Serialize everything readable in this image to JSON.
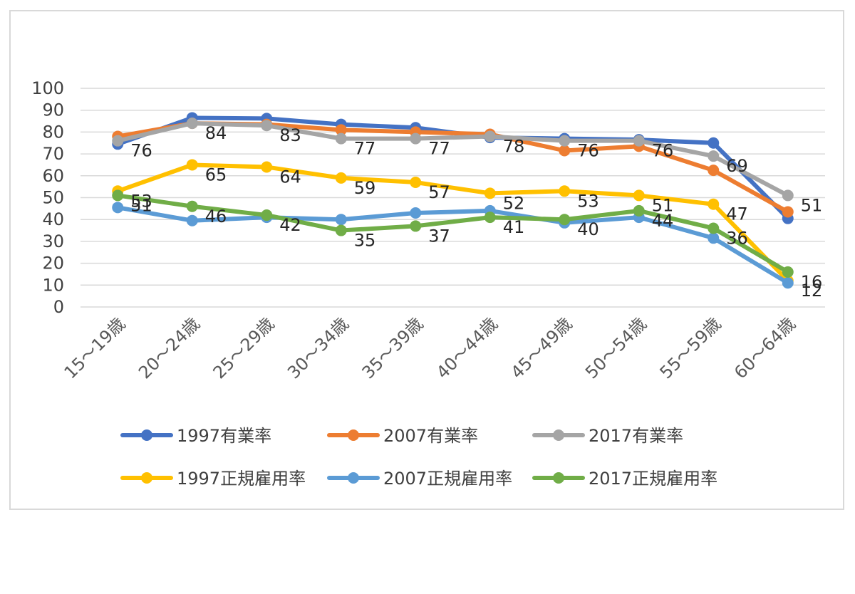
{
  "chart_data": {
    "type": "line",
    "categories": [
      "15～19歳",
      "20～24歳",
      "25～29歳",
      "30～34歳",
      "35～39歳",
      "40～44歳",
      "45～49歳",
      "50～54歳",
      "55～59歳",
      "60～64歳"
    ],
    "ylim": [
      0,
      100
    ],
    "yticks": [
      0,
      10,
      20,
      30,
      40,
      50,
      60,
      70,
      80,
      90,
      100
    ],
    "grid": true,
    "legend_position": "bottom",
    "series": [
      {
        "name": "1997有業率",
        "color": "#4472c4",
        "values": [
          74.5,
          86.5,
          86.2,
          83.5,
          82,
          77.5,
          77,
          76.5,
          75,
          40.5
        ]
      },
      {
        "name": "2007有業率",
        "color": "#ed7d31",
        "values": [
          78,
          84,
          83.5,
          81,
          80,
          79,
          71.5,
          73.5,
          62.5,
          43.5
        ]
      },
      {
        "name": "2017有業率",
        "color": "#a5a5a5",
        "values": [
          76,
          84,
          83,
          77,
          77,
          78,
          76,
          76,
          69,
          51
        ]
      },
      {
        "name": "1997正規雇用率",
        "color": "#ffc000",
        "values": [
          53,
          65,
          64,
          59,
          57,
          52,
          53,
          51,
          47,
          12
        ]
      },
      {
        "name": "2007正規雇用率",
        "color": "#5b9bd5",
        "values": [
          45.5,
          39.5,
          41,
          40,
          43,
          44,
          38.5,
          41,
          31.5,
          11
        ]
      },
      {
        "name": "2017正規雇用率",
        "color": "#70ad47",
        "values": [
          51,
          46,
          42,
          35,
          37,
          41,
          40,
          44,
          36,
          16
        ]
      }
    ],
    "data_labels": [
      {
        "series": 2,
        "point": 0,
        "text": "76"
      },
      {
        "series": 2,
        "point": 1,
        "text": "84"
      },
      {
        "series": 2,
        "point": 2,
        "text": "83"
      },
      {
        "series": 2,
        "point": 3,
        "text": "77"
      },
      {
        "series": 2,
        "point": 4,
        "text": "77"
      },
      {
        "series": 2,
        "point": 5,
        "text": "78"
      },
      {
        "series": 2,
        "point": 6,
        "text": "76"
      },
      {
        "series": 2,
        "point": 7,
        "text": "76"
      },
      {
        "series": 2,
        "point": 8,
        "text": "69"
      },
      {
        "series": 2,
        "point": 9,
        "text": "51"
      },
      {
        "series": 3,
        "point": 0,
        "text": "53"
      },
      {
        "series": 3,
        "point": 1,
        "text": "65"
      },
      {
        "series": 3,
        "point": 2,
        "text": "64"
      },
      {
        "series": 3,
        "point": 3,
        "text": "59"
      },
      {
        "series": 3,
        "point": 4,
        "text": "57"
      },
      {
        "series": 3,
        "point": 5,
        "text": "52"
      },
      {
        "series": 3,
        "point": 6,
        "text": "53"
      },
      {
        "series": 3,
        "point": 7,
        "text": "51"
      },
      {
        "series": 3,
        "point": 8,
        "text": "47"
      },
      {
        "series": 3,
        "point": 9,
        "text": "12"
      },
      {
        "series": 5,
        "point": 0,
        "text": "51"
      },
      {
        "series": 5,
        "point": 1,
        "text": "46"
      },
      {
        "series": 5,
        "point": 2,
        "text": "42"
      },
      {
        "series": 5,
        "point": 3,
        "text": "35"
      },
      {
        "series": 5,
        "point": 4,
        "text": "37"
      },
      {
        "series": 5,
        "point": 5,
        "text": "41"
      },
      {
        "series": 5,
        "point": 6,
        "text": "40"
      },
      {
        "series": 5,
        "point": 7,
        "text": "44"
      },
      {
        "series": 5,
        "point": 8,
        "text": "36"
      },
      {
        "series": 5,
        "point": 9,
        "text": "16"
      }
    ]
  }
}
